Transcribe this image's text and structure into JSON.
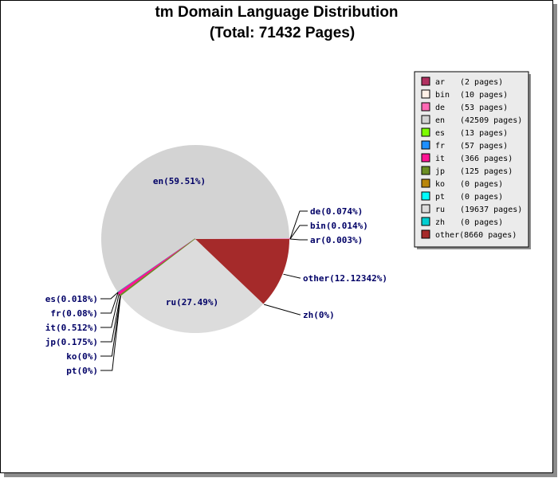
{
  "chart_data": {
    "type": "pie",
    "title": "tm Domain Language Distribution",
    "subtitle": "(Total: 71432 Pages)",
    "slices": [
      {
        "key": "ar",
        "pages": 2,
        "label": "ar(0.003%)",
        "legend": "(2 pages)",
        "color": "#b03060"
      },
      {
        "key": "bin",
        "pages": 10,
        "label": "bin(0.014%)",
        "legend": "(10 pages)",
        "color": "#fff0e6"
      },
      {
        "key": "de",
        "pages": 53,
        "label": "de(0.074%)",
        "legend": "(53 pages)",
        "color": "#ff69b4"
      },
      {
        "key": "en",
        "pages": 42509,
        "label": "en(59.51%)",
        "legend": "(42509 pages)",
        "color": "#d3d3d3"
      },
      {
        "key": "es",
        "pages": 13,
        "label": "es(0.018%)",
        "legend": "(13 pages)",
        "color": "#7cfc00"
      },
      {
        "key": "fr",
        "pages": 57,
        "label": "fr(0.08%)",
        "legend": "(57 pages)",
        "color": "#1e90ff"
      },
      {
        "key": "it",
        "pages": 366,
        "label": "it(0.512%)",
        "legend": "(366 pages)",
        "color": "#ff1493"
      },
      {
        "key": "jp",
        "pages": 125,
        "label": "jp(0.175%)",
        "legend": "(125 pages)",
        "color": "#6b8e23"
      },
      {
        "key": "ko",
        "pages": 0,
        "label": "ko(0%)",
        "legend": "(0 pages)",
        "color": "#b8860b"
      },
      {
        "key": "pt",
        "pages": 0,
        "label": "pt(0%)",
        "legend": "(0 pages)",
        "color": "#00ffff"
      },
      {
        "key": "ru",
        "pages": 19637,
        "label": "ru(27.49%)",
        "legend": "(19637 pages)",
        "color": "#dcdcdc"
      },
      {
        "key": "zh",
        "pages": 0,
        "label": "zh(0%)",
        "legend": "(0 pages)",
        "color": "#00ced1"
      },
      {
        "key": "other",
        "pages": 8660,
        "label": "other(12.12342%)",
        "legend": "(8660 pages)",
        "color": "#a52a2a"
      }
    ],
    "legend_placement": "top-right"
  }
}
